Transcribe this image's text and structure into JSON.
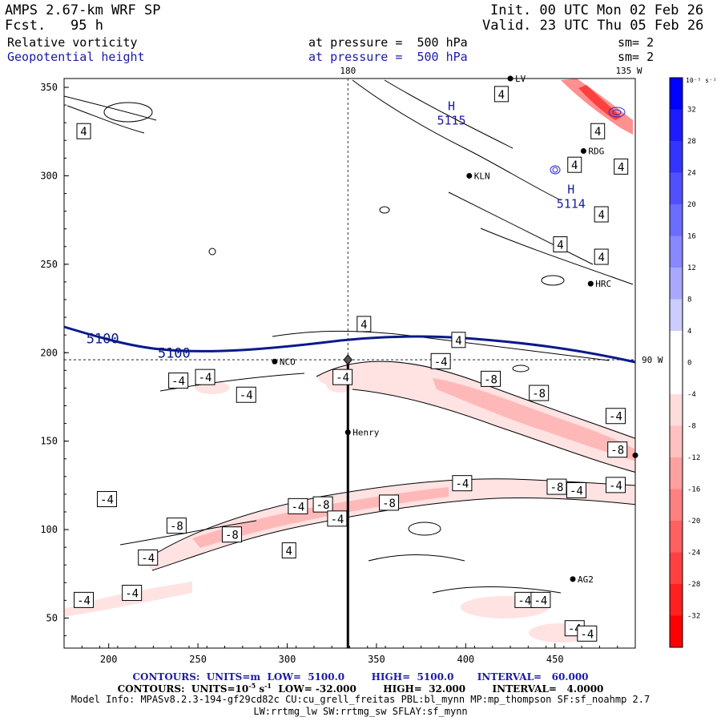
{
  "header": {
    "model": "AMPS 2.67-km WRF SP",
    "fcst_label": "Fcst.",
    "fcst_value": "95 h",
    "init": "Init. 00 UTC Mon 02 Feb 26",
    "valid": "Valid. 23 UTC Thu 05 Feb 26",
    "field1": "Relative vorticity",
    "field1_pressure": "at pressure =  500 hPa",
    "field1_sm": "sm= 2",
    "field2": "Geopotential height",
    "field2_pressure": "at pressure =  500 hPa",
    "field2_sm": "sm= 2",
    "colors": {
      "field2": "#1a1aa8",
      "height_contour": "#0a1a8a"
    }
  },
  "chart_data": {
    "type": "heatmap",
    "description_axes": "grid index plot",
    "xlim": [
      175,
      495
    ],
    "ylim": [
      33,
      355
    ],
    "x_ticks": [
      200,
      250,
      300,
      350,
      400,
      450
    ],
    "y_ticks": [
      50,
      100,
      150,
      200,
      250,
      300,
      350
    ],
    "meridian_labels": {
      "top_180": "180",
      "top_135w": "135 W",
      "right_90w": "90 W"
    },
    "meridian_x": 334,
    "parallel_y": 196,
    "section_line": {
      "x": [
        334,
        334
      ],
      "y": [
        196,
        33
      ]
    },
    "stations": [
      {
        "name": "NCO",
        "x": 293,
        "y": 195
      },
      {
        "name": "Henry",
        "x": 334,
        "y": 155
      },
      {
        "name": "KLN",
        "x": 402,
        "y": 300
      },
      {
        "name": "RDG",
        "x": 466,
        "y": 314
      },
      {
        "name": "HRC",
        "x": 470,
        "y": 239
      },
      {
        "name": "AG2",
        "x": 460,
        "y": 72
      },
      {
        "name": "",
        "x": 495,
        "y": 142
      },
      {
        "name": "LV",
        "x": 425,
        "y": 355
      }
    ],
    "height_contours": [
      {
        "value": 5100,
        "label": "5100",
        "label_positions": [
          [
            200,
            208
          ],
          [
            240,
            200
          ]
        ]
      }
    ],
    "highs": [
      {
        "label": "H",
        "value": "5115",
        "x": 392,
        "y": 337
      },
      {
        "label": "H",
        "value": "5114",
        "x": 459,
        "y": 290
      }
    ],
    "vorticity_labels": [
      {
        "value": "4",
        "x": 186,
        "y": 325
      },
      {
        "value": "4",
        "x": 420,
        "y": 346
      },
      {
        "value": "4",
        "x": 474,
        "y": 325
      },
      {
        "value": "4",
        "x": 461,
        "y": 306
      },
      {
        "value": "4",
        "x": 487,
        "y": 305
      },
      {
        "value": "4",
        "x": 476,
        "y": 278
      },
      {
        "value": "4",
        "x": 453,
        "y": 261
      },
      {
        "value": "4",
        "x": 476,
        "y": 254
      },
      {
        "value": "4",
        "x": 343,
        "y": 216
      },
      {
        "value": "4",
        "x": 396,
        "y": 207
      },
      {
        "value": "-4",
        "x": 386,
        "y": 195
      },
      {
        "value": "-4",
        "x": 239,
        "y": 184
      },
      {
        "value": "-4",
        "x": 254,
        "y": 186
      },
      {
        "value": "-4",
        "x": 277,
        "y": 176
      },
      {
        "value": "-4",
        "x": 331,
        "y": 186
      },
      {
        "value": "-8",
        "x": 414,
        "y": 185
      },
      {
        "value": "-8",
        "x": 441,
        "y": 177
      },
      {
        "value": "-4",
        "x": 484,
        "y": 164
      },
      {
        "value": "-8",
        "x": 485,
        "y": 145
      },
      {
        "value": "-4",
        "x": 199,
        "y": 117
      },
      {
        "value": "-4",
        "x": 306,
        "y": 113
      },
      {
        "value": "-8",
        "x": 320,
        "y": 114
      },
      {
        "value": "-8",
        "x": 357,
        "y": 115
      },
      {
        "value": "-4",
        "x": 328,
        "y": 106
      },
      {
        "value": "-8",
        "x": 238,
        "y": 102
      },
      {
        "value": "-8",
        "x": 269,
        "y": 97
      },
      {
        "value": "4",
        "x": 301,
        "y": 88
      },
      {
        "value": "-4",
        "x": 222,
        "y": 84
      },
      {
        "value": "-4",
        "x": 398,
        "y": 126
      },
      {
        "value": "-8",
        "x": 451,
        "y": 124
      },
      {
        "value": "-4",
        "x": 462,
        "y": 122
      },
      {
        "value": "-4",
        "x": 484,
        "y": 125
      },
      {
        "value": "-4",
        "x": 186,
        "y": 60
      },
      {
        "value": "-4",
        "x": 213,
        "y": 64
      },
      {
        "value": "-4",
        "x": 433,
        "y": 60
      },
      {
        "value": "-4",
        "x": 442,
        "y": 60
      },
      {
        "value": "-4",
        "x": 461,
        "y": 44
      },
      {
        "value": "-4",
        "x": 468,
        "y": 41
      }
    ]
  },
  "colorbar": {
    "unit": "10⁻⁵ s⁻¹",
    "labels": [
      "32",
      "28",
      "24",
      "20",
      "16",
      "12",
      "8",
      "4",
      "0",
      "-4",
      "-8",
      "-12",
      "-16",
      "-20",
      "-24",
      "-28",
      "-32"
    ],
    "colors": [
      "#0000ff",
      "#1c1cff",
      "#3434ff",
      "#5050ff",
      "#6c6cff",
      "#8888ff",
      "#a8a8ff",
      "#ccccff",
      "#ffffff",
      "#ffffff",
      "#ffdcdc",
      "#ffc0c0",
      "#ffa0a0",
      "#ff8080",
      "#ff6060",
      "#ff4040",
      "#ff2020",
      "#ff0000"
    ]
  },
  "footer": {
    "contours_height": "CONTOURS:  UNITS=m  LOW=  5100.0        HIGH=  5100.0       INTERVAL=   60.000",
    "contours_vort_a": "CONTOURS:  UNITS=10",
    "contours_vort_sup1": "-5",
    "contours_vort_b": " s",
    "contours_vort_sup2": "-1",
    "contours_vort_c": "  LOW= -32.000        HIGH=  32.000        INTERVAL=   4.0000",
    "model_info": "Model Info: MPASv8.2.3-194-gf29cd82c CU:cu_grell_freitas PBL:bl_mynn MP:mp_thompson SF:sf_noahmp 2.7",
    "model_info2": "LW:rrtmg_lw SW:rrtmg_sw SFLAY:sf_mynn"
  }
}
